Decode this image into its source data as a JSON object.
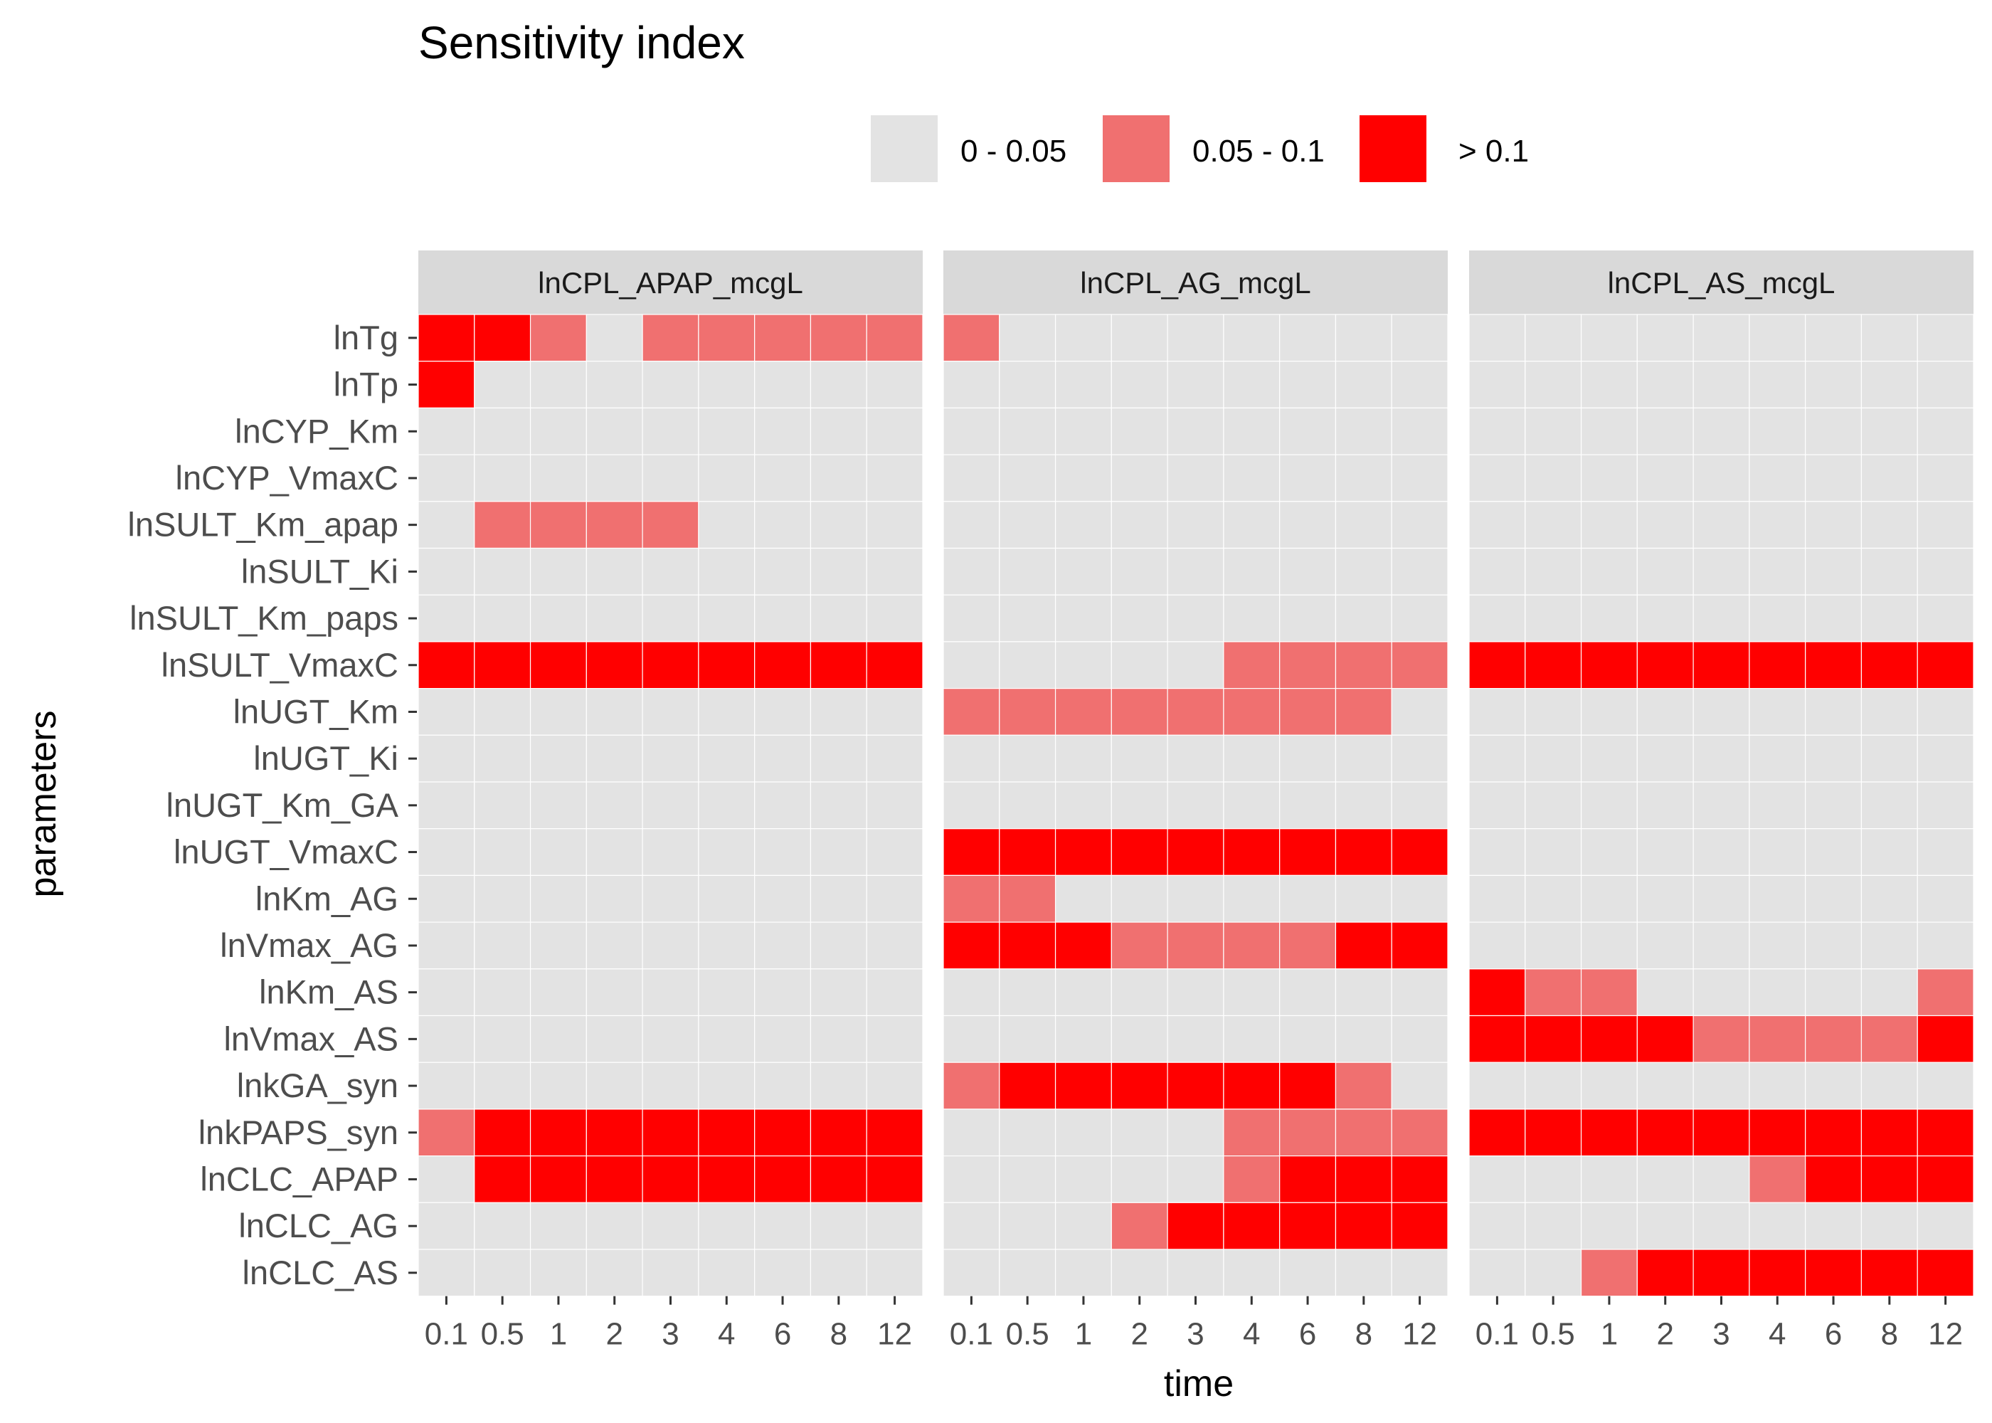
{
  "chart_data": {
    "type": "heatmap",
    "title": "Sensitivity index",
    "xlabel": "time",
    "ylabel": "parameters",
    "grid": true,
    "legend_position": "top",
    "legend": [
      {
        "label": "0 - 0.05",
        "color": "#e3e3e3"
      },
      {
        "label": "0.05 - 0.1",
        "color": "#f07070"
      },
      {
        "label": "> 0.1",
        "color": "#ff0000"
      }
    ],
    "x_ticks": [
      "0.1",
      "0.5",
      "1",
      "2",
      "3",
      "4",
      "6",
      "8",
      "12"
    ],
    "parameters": [
      "lnTg",
      "lnTp",
      "lnCYP_Km",
      "lnCYP_VmaxC",
      "lnSULT_Km_apap",
      "lnSULT_Ki",
      "lnSULT_Km_paps",
      "lnSULT_VmaxC",
      "lnUGT_Km",
      "lnUGT_Ki",
      "lnUGT_Km_GA",
      "lnUGT_VmaxC",
      "lnKm_AG",
      "lnVmax_AG",
      "lnKm_AS",
      "lnVmax_AS",
      "lnkGA_syn",
      "lnkPAPS_syn",
      "lnCLC_APAP",
      "lnCLC_AG",
      "lnCLC_AS"
    ],
    "panels": [
      {
        "name": "lnCPL_APAP_mcgL",
        "levels": [
          [
            2,
            2,
            1,
            0,
            1,
            1,
            1,
            1,
            1
          ],
          [
            2,
            0,
            0,
            0,
            0,
            0,
            0,
            0,
            0
          ],
          [
            0,
            0,
            0,
            0,
            0,
            0,
            0,
            0,
            0
          ],
          [
            0,
            0,
            0,
            0,
            0,
            0,
            0,
            0,
            0
          ],
          [
            0,
            1,
            1,
            1,
            1,
            0,
            0,
            0,
            0
          ],
          [
            0,
            0,
            0,
            0,
            0,
            0,
            0,
            0,
            0
          ],
          [
            0,
            0,
            0,
            0,
            0,
            0,
            0,
            0,
            0
          ],
          [
            2,
            2,
            2,
            2,
            2,
            2,
            2,
            2,
            2
          ],
          [
            0,
            0,
            0,
            0,
            0,
            0,
            0,
            0,
            0
          ],
          [
            0,
            0,
            0,
            0,
            0,
            0,
            0,
            0,
            0
          ],
          [
            0,
            0,
            0,
            0,
            0,
            0,
            0,
            0,
            0
          ],
          [
            0,
            0,
            0,
            0,
            0,
            0,
            0,
            0,
            0
          ],
          [
            0,
            0,
            0,
            0,
            0,
            0,
            0,
            0,
            0
          ],
          [
            0,
            0,
            0,
            0,
            0,
            0,
            0,
            0,
            0
          ],
          [
            0,
            0,
            0,
            0,
            0,
            0,
            0,
            0,
            0
          ],
          [
            0,
            0,
            0,
            0,
            0,
            0,
            0,
            0,
            0
          ],
          [
            0,
            0,
            0,
            0,
            0,
            0,
            0,
            0,
            0
          ],
          [
            1,
            2,
            2,
            2,
            2,
            2,
            2,
            2,
            2
          ],
          [
            0,
            2,
            2,
            2,
            2,
            2,
            2,
            2,
            2
          ],
          [
            0,
            0,
            0,
            0,
            0,
            0,
            0,
            0,
            0
          ],
          [
            0,
            0,
            0,
            0,
            0,
            0,
            0,
            0,
            0
          ]
        ]
      },
      {
        "name": "lnCPL_AG_mcgL",
        "levels": [
          [
            1,
            0,
            0,
            0,
            0,
            0,
            0,
            0,
            0
          ],
          [
            0,
            0,
            0,
            0,
            0,
            0,
            0,
            0,
            0
          ],
          [
            0,
            0,
            0,
            0,
            0,
            0,
            0,
            0,
            0
          ],
          [
            0,
            0,
            0,
            0,
            0,
            0,
            0,
            0,
            0
          ],
          [
            0,
            0,
            0,
            0,
            0,
            0,
            0,
            0,
            0
          ],
          [
            0,
            0,
            0,
            0,
            0,
            0,
            0,
            0,
            0
          ],
          [
            0,
            0,
            0,
            0,
            0,
            0,
            0,
            0,
            0
          ],
          [
            0,
            0,
            0,
            0,
            0,
            1,
            1,
            1,
            1
          ],
          [
            1,
            1,
            1,
            1,
            1,
            1,
            1,
            1,
            0
          ],
          [
            0,
            0,
            0,
            0,
            0,
            0,
            0,
            0,
            0
          ],
          [
            0,
            0,
            0,
            0,
            0,
            0,
            0,
            0,
            0
          ],
          [
            2,
            2,
            2,
            2,
            2,
            2,
            2,
            2,
            2
          ],
          [
            1,
            1,
            0,
            0,
            0,
            0,
            0,
            0,
            0
          ],
          [
            2,
            2,
            2,
            1,
            1,
            1,
            1,
            2,
            2
          ],
          [
            0,
            0,
            0,
            0,
            0,
            0,
            0,
            0,
            0
          ],
          [
            0,
            0,
            0,
            0,
            0,
            0,
            0,
            0,
            0
          ],
          [
            1,
            2,
            2,
            2,
            2,
            2,
            2,
            1,
            0
          ],
          [
            0,
            0,
            0,
            0,
            0,
            1,
            1,
            1,
            1
          ],
          [
            0,
            0,
            0,
            0,
            0,
            1,
            2,
            2,
            2
          ],
          [
            0,
            0,
            0,
            1,
            2,
            2,
            2,
            2,
            2
          ],
          [
            0,
            0,
            0,
            0,
            0,
            0,
            0,
            0,
            0
          ]
        ]
      },
      {
        "name": "lnCPL_AS_mcgL",
        "levels": [
          [
            0,
            0,
            0,
            0,
            0,
            0,
            0,
            0,
            0
          ],
          [
            0,
            0,
            0,
            0,
            0,
            0,
            0,
            0,
            0
          ],
          [
            0,
            0,
            0,
            0,
            0,
            0,
            0,
            0,
            0
          ],
          [
            0,
            0,
            0,
            0,
            0,
            0,
            0,
            0,
            0
          ],
          [
            0,
            0,
            0,
            0,
            0,
            0,
            0,
            0,
            0
          ],
          [
            0,
            0,
            0,
            0,
            0,
            0,
            0,
            0,
            0
          ],
          [
            0,
            0,
            0,
            0,
            0,
            0,
            0,
            0,
            0
          ],
          [
            2,
            2,
            2,
            2,
            2,
            2,
            2,
            2,
            2
          ],
          [
            0,
            0,
            0,
            0,
            0,
            0,
            0,
            0,
            0
          ],
          [
            0,
            0,
            0,
            0,
            0,
            0,
            0,
            0,
            0
          ],
          [
            0,
            0,
            0,
            0,
            0,
            0,
            0,
            0,
            0
          ],
          [
            0,
            0,
            0,
            0,
            0,
            0,
            0,
            0,
            0
          ],
          [
            0,
            0,
            0,
            0,
            0,
            0,
            0,
            0,
            0
          ],
          [
            0,
            0,
            0,
            0,
            0,
            0,
            0,
            0,
            0
          ],
          [
            2,
            1,
            1,
            0,
            0,
            0,
            0,
            0,
            1
          ],
          [
            2,
            2,
            2,
            2,
            1,
            1,
            1,
            1,
            2
          ],
          [
            0,
            0,
            0,
            0,
            0,
            0,
            0,
            0,
            0
          ],
          [
            2,
            2,
            2,
            2,
            2,
            2,
            2,
            2,
            2
          ],
          [
            0,
            0,
            0,
            0,
            0,
            1,
            2,
            2,
            2
          ],
          [
            0,
            0,
            0,
            0,
            0,
            0,
            0,
            0,
            0
          ],
          [
            0,
            0,
            1,
            2,
            2,
            2,
            2,
            2,
            2
          ]
        ]
      }
    ]
  }
}
